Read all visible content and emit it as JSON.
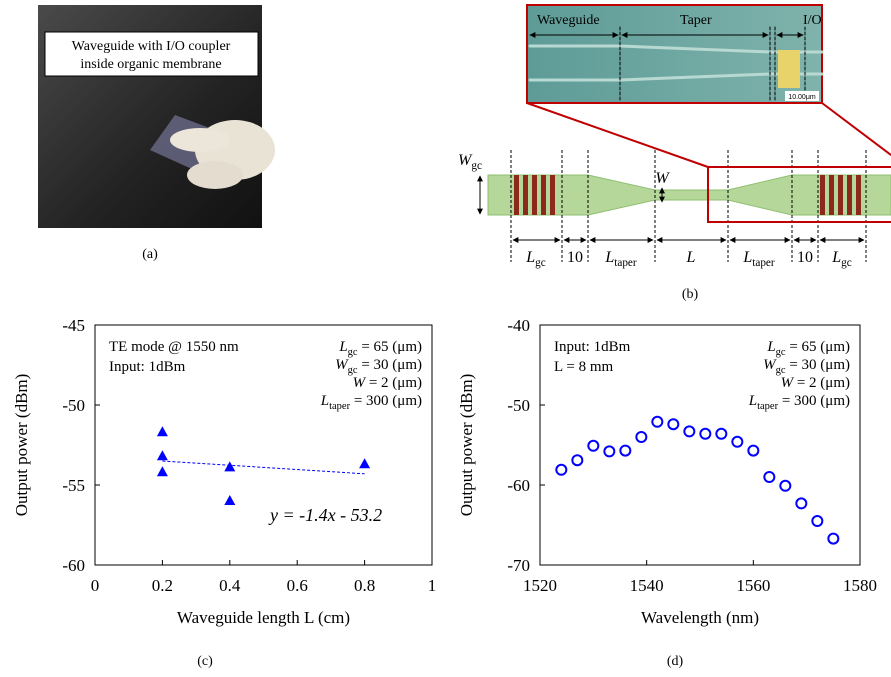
{
  "photo": {
    "caption_lines": [
      "Waveguide with I/O coupler",
      "inside organic membrane"
    ],
    "label": "(a)"
  },
  "micrograph": {
    "labels": [
      "Waveguide",
      "Taper",
      "I/O"
    ],
    "scale_bar": "10.00μm"
  },
  "schematic": {
    "label": "(b)",
    "width_labels": [
      {
        "symbol": "W",
        "sub": "gc"
      },
      {
        "symbol": "W"
      }
    ],
    "length_labels": [
      {
        "symbol": "L",
        "sub": "gc"
      },
      {
        "symbol": "10"
      },
      {
        "symbol": "L",
        "sub": "taper"
      },
      {
        "symbol": "L"
      },
      {
        "symbol": "L",
        "sub": "taper"
      },
      {
        "symbol": "10"
      },
      {
        "symbol": "L",
        "sub": "gc"
      }
    ]
  },
  "chart_data": [
    {
      "type": "scatter",
      "label": "(c)",
      "marker": "triangle",
      "color": "#0000ff",
      "xlabel": "Waveguide length L (cm)",
      "ylabel": "Output power (dBm)",
      "x": [
        0.2,
        0.2,
        0.2,
        0.4,
        0.4,
        0.8
      ],
      "values": [
        -51.7,
        -53.2,
        -54.2,
        -53.9,
        -56.0,
        -53.7
      ],
      "xlim": [
        0,
        1
      ],
      "xticks": [
        0,
        0.2,
        0.4,
        0.6,
        0.8,
        1
      ],
      "ylim": [
        -60,
        -45
      ],
      "yticks": [
        -60,
        -55,
        -50,
        -45
      ],
      "notes": [
        "TE mode @ 1550 nm",
        "Input: 1dBm"
      ],
      "params": [
        {
          "symbol": "L",
          "sub": "gc",
          "text": " = 65 (μm)"
        },
        {
          "symbol": "W",
          "sub": "gc",
          "text": " = 30 (μm)"
        },
        {
          "symbol": "W",
          "text": " = 2 (μm)"
        },
        {
          "symbol": "L",
          "sub": "taper",
          "text": " = 300 (μm)"
        }
      ],
      "equation": "y = -1.4x - 53.2",
      "trendline": {
        "x": [
          0.2,
          0.8
        ],
        "values": [
          -53.5,
          -54.3
        ],
        "color": "#0000ff"
      }
    },
    {
      "type": "scatter",
      "label": "(d)",
      "marker": "circle",
      "color": "#0000ff",
      "xlabel": "Wavelength (nm)",
      "ylabel": "Output power (dBm)",
      "x": [
        1524,
        1527,
        1530,
        1533,
        1536,
        1539,
        1542,
        1545,
        1548,
        1551,
        1554,
        1557,
        1560,
        1563,
        1566,
        1569,
        1572,
        1575
      ],
      "values": [
        -58.1,
        -56.9,
        -55.1,
        -55.8,
        -55.7,
        -54.0,
        -52.1,
        -52.4,
        -53.3,
        -53.6,
        -53.6,
        -54.6,
        -55.7,
        -59.0,
        -60.1,
        -62.3,
        -64.5,
        -66.7
      ],
      "xlim": [
        1520,
        1580
      ],
      "xticks": [
        1520,
        1540,
        1560,
        1580
      ],
      "ylim": [
        -70,
        -40
      ],
      "yticks": [
        -70,
        -60,
        -50,
        -40
      ],
      "notes": [
        "Input: 1dBm",
        "L = 8 mm"
      ],
      "params": [
        {
          "symbol": "L",
          "sub": "gc",
          "text": " = 65 (μm)"
        },
        {
          "symbol": "W",
          "sub": "gc",
          "text": " = 30 (μm)"
        },
        {
          "symbol": "W",
          "text": " = 2 (μm)"
        },
        {
          "symbol": "L",
          "sub": "taper",
          "text": " = 300 (μm)"
        }
      ]
    }
  ]
}
